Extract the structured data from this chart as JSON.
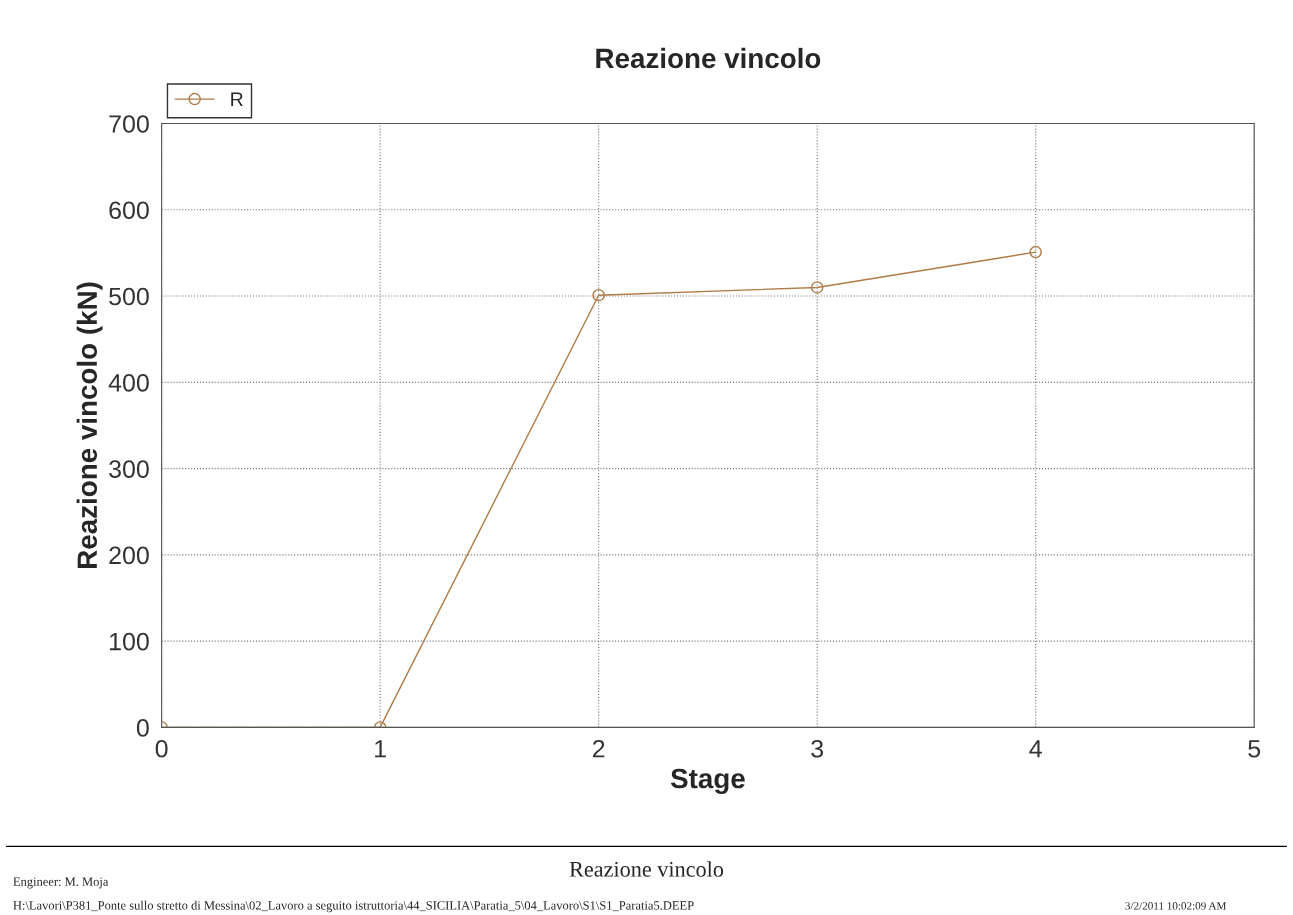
{
  "chart_data": {
    "type": "line",
    "title": "Reazione vincolo",
    "xlabel": "Stage",
    "ylabel": "Reazione vincolo (kN)",
    "x": [
      0,
      1,
      2,
      3,
      4
    ],
    "series": [
      {
        "name": "R",
        "color": "#b07a45",
        "values": [
          0,
          0,
          501,
          510,
          551
        ]
      }
    ],
    "xlim": [
      0,
      5
    ],
    "xticks": [
      0,
      1,
      2,
      3,
      4,
      5
    ],
    "ylim": [
      0,
      700
    ],
    "yticks": [
      0,
      100,
      200,
      300,
      400,
      500,
      600,
      700
    ],
    "grid": true,
    "legend": "top left",
    "marker": "circle",
    "line_style": "solid",
    "annotations": [
      "Engineer: M. Moja",
      "Reazione vincolo",
      "H:\\Lavori\\P381_Ponte sullo stretto di Messina\\02_Lavoro a seguito istruttoria\\44_SICILIA\\Paratia_5\\04_Lavoro\\S1\\S1_Paratia5.DEEP",
      "3/2/2011 10:02:09 AM"
    ]
  }
}
